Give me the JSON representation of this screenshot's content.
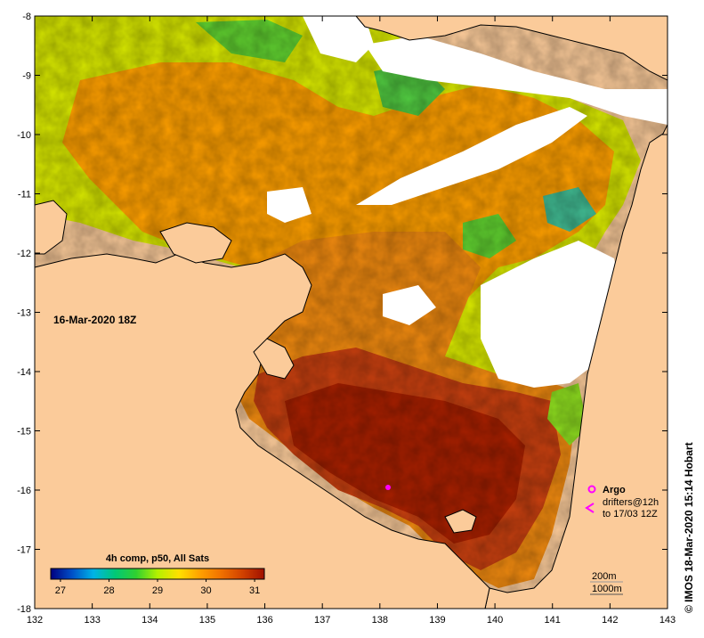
{
  "map": {
    "date_label": "16-Mar-2020 18Z",
    "credit": "© IMOS 18-Mar-2020 15:14 Hobart",
    "lon_ticks": [
      "132",
      "133",
      "134",
      "135",
      "136",
      "137",
      "138",
      "139",
      "140",
      "141",
      "142",
      "143"
    ],
    "lat_ticks": [
      "-8",
      "-9",
      "-10",
      "-11",
      "-12",
      "-13",
      "-14",
      "-15",
      "-16",
      "-17",
      "-18"
    ],
    "colorbar": {
      "title": "4h comp, p50, All Sats",
      "tick_labels": [
        "27",
        "28",
        "29",
        "30",
        "31"
      ],
      "min": 26.8,
      "max": 31.2,
      "colors": [
        "#000080",
        "#0050c8",
        "#00b4e6",
        "#00c878",
        "#30d030",
        "#b4f000",
        "#ffe000",
        "#ffa000",
        "#f07000",
        "#d04000",
        "#a01000"
      ]
    },
    "legend": {
      "argo_label": "Argo",
      "drifters_label": "drifters@12h",
      "drifters_period": "to 17/03 12Z",
      "contour_200": "200m",
      "contour_1000": "1000m"
    },
    "colors": {
      "land": "#fbcb9a",
      "cloud": "#ffffff",
      "marker": "#ff00ff"
    }
  }
}
